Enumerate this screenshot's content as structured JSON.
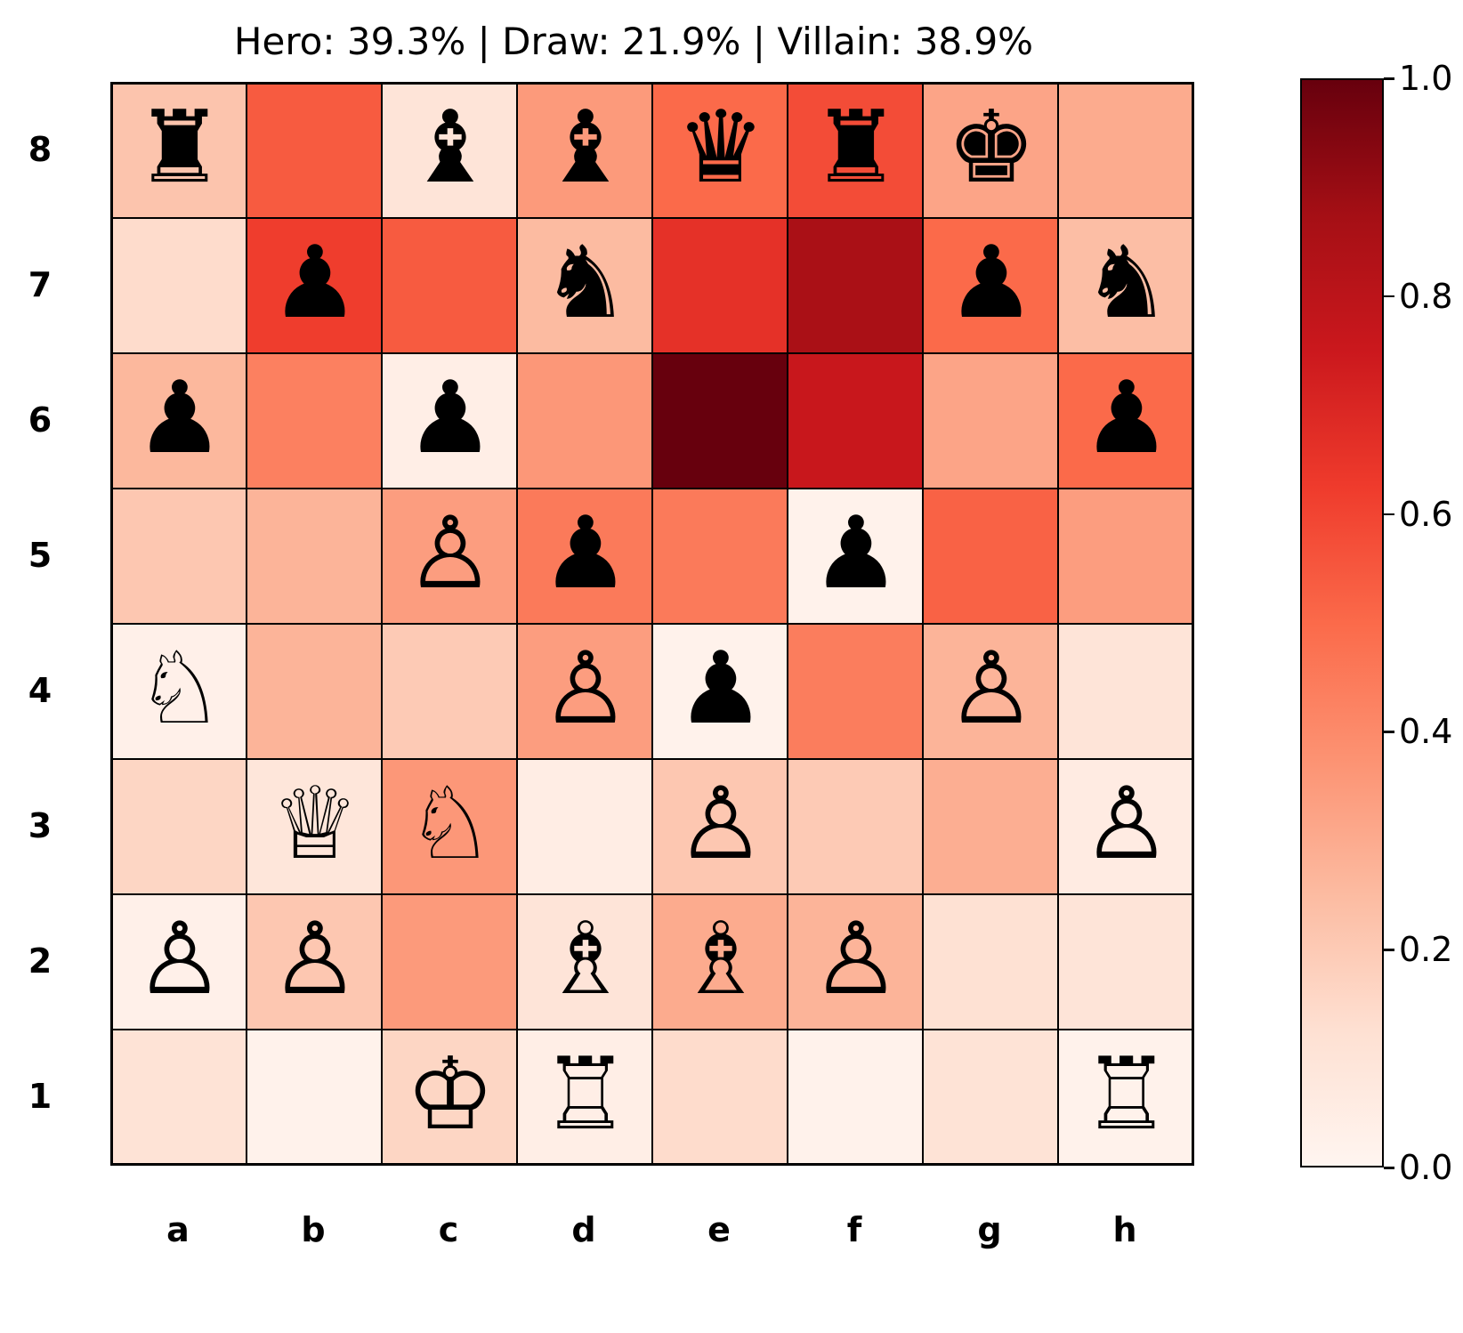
{
  "title": "Hero: 39.3% | Draw: 21.9% | Villain: 38.9%",
  "files": [
    "a",
    "b",
    "c",
    "d",
    "e",
    "f",
    "g",
    "h"
  ],
  "ranks": [
    "8",
    "7",
    "6",
    "5",
    "4",
    "3",
    "2",
    "1"
  ],
  "colorbar": {
    "ticks": [
      "0.0",
      "0.2",
      "0.4",
      "0.6",
      "0.8",
      "1.0"
    ],
    "min": 0.0,
    "max": 1.0,
    "colormap": "Reds"
  },
  "heat": [
    [
      0.22,
      0.54,
      0.1,
      0.35,
      0.5,
      0.58,
      0.32,
      0.3
    ],
    [
      0.14,
      0.62,
      0.54,
      0.25,
      0.66,
      0.86,
      0.5,
      0.24
    ],
    [
      0.26,
      0.43,
      0.04,
      0.36,
      1.0,
      0.76,
      0.32,
      0.5
    ],
    [
      0.21,
      0.27,
      0.34,
      0.45,
      0.45,
      0.02,
      0.52,
      0.34
    ],
    [
      0.03,
      0.27,
      0.2,
      0.34,
      0.02,
      0.44,
      0.27,
      0.1
    ],
    [
      0.16,
      0.09,
      0.36,
      0.05,
      0.21,
      0.2,
      0.29,
      0.06
    ],
    [
      0.03,
      0.21,
      0.35,
      0.1,
      0.3,
      0.27,
      0.12,
      0.1
    ],
    [
      0.11,
      0.02,
      0.16,
      0.04,
      0.14,
      0.02,
      0.11,
      0.02
    ]
  ],
  "pieces": [
    [
      "♜",
      "",
      "♝",
      "♝",
      "♛",
      "♜",
      "♚",
      ""
    ],
    [
      "",
      "♟",
      "",
      "♞",
      "",
      "",
      "♟",
      "♞"
    ],
    [
      "♟",
      "",
      "♟",
      "",
      "",
      "",
      "",
      "♟"
    ],
    [
      "",
      "",
      "♙",
      "♟",
      "",
      "♟",
      "",
      ""
    ],
    [
      "♘",
      "",
      "",
      "♙",
      "♟",
      "",
      "♙",
      ""
    ],
    [
      "",
      "♕",
      "♘",
      "",
      "♙",
      "",
      "",
      "♙"
    ],
    [
      "♙",
      "♙",
      "",
      "♗",
      "♗",
      "♙",
      "",
      ""
    ],
    [
      "",
      "",
      "♔",
      "♖",
      "",
      "",
      "",
      "♖"
    ]
  ]
}
